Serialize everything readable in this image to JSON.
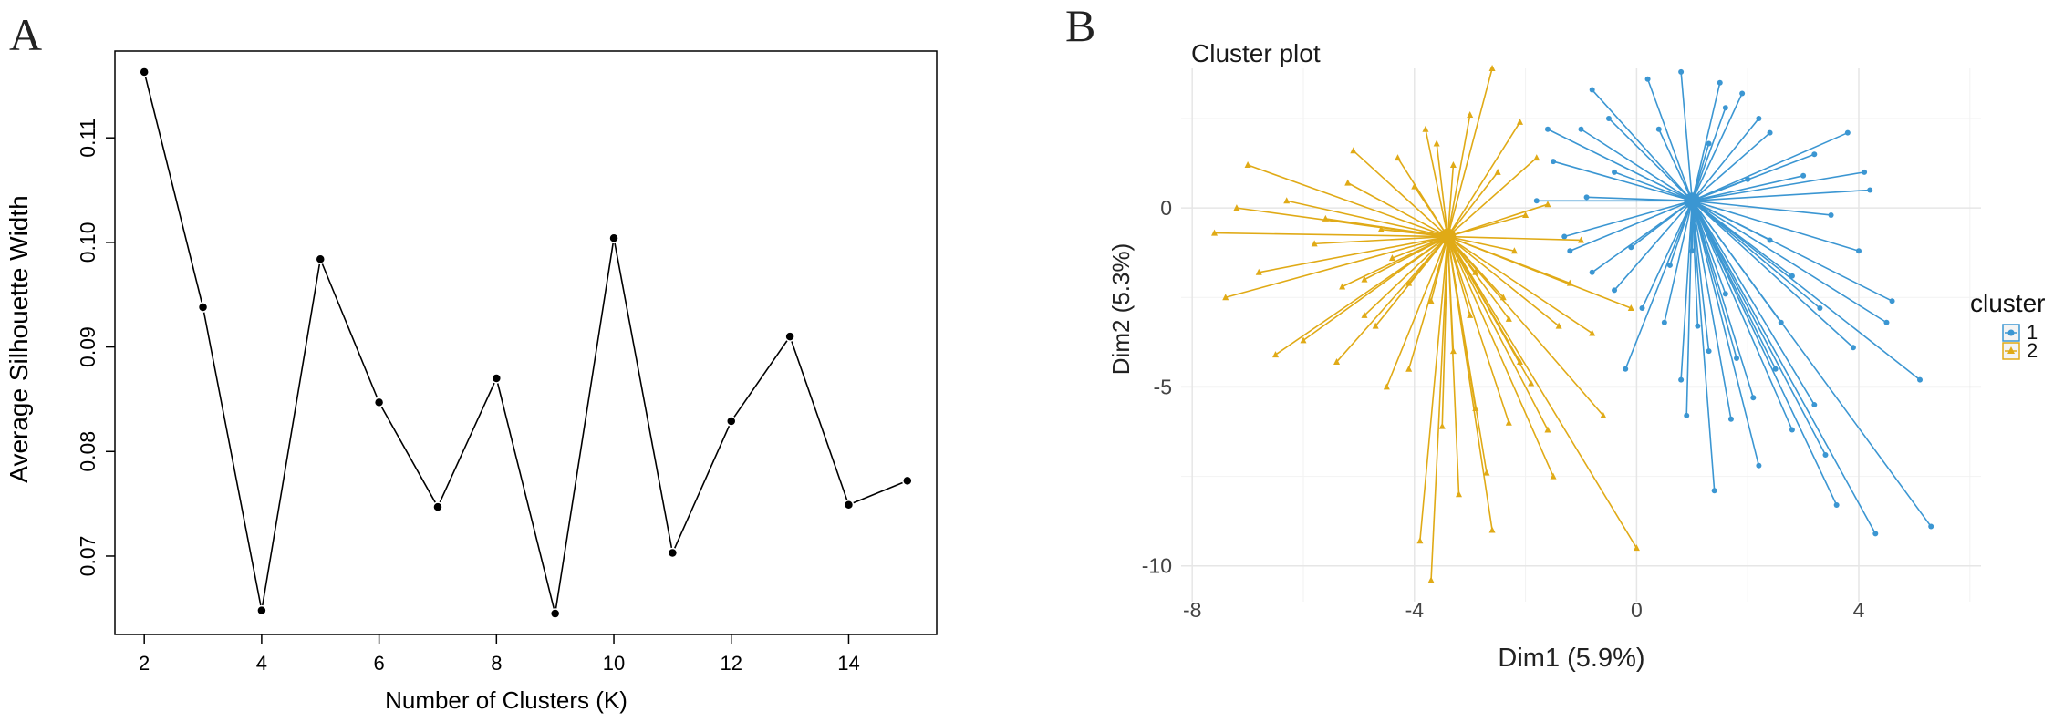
{
  "chart_data": [
    {
      "panel_label": "A",
      "type": "line",
      "xlabel": "Number of Clusters (K)",
      "ylabel": "Average Silhouette Width",
      "x": [
        2,
        3,
        4,
        5,
        6,
        7,
        8,
        9,
        10,
        11,
        12,
        13,
        14,
        15
      ],
      "values": [
        0.1163,
        0.0938,
        0.0648,
        0.0984,
        0.0847,
        0.0747,
        0.087,
        0.0645,
        0.1004,
        0.0703,
        0.0829,
        0.091,
        0.0749,
        0.0772
      ],
      "xlim": [
        1.5,
        15.5
      ],
      "ylim": [
        0.0625,
        0.1183
      ],
      "xticks": [
        2,
        4,
        6,
        8,
        10,
        12,
        14
      ],
      "yticks": [
        0.07,
        0.08,
        0.09,
        0.1,
        0.11
      ],
      "ytick_labels": [
        "0.07",
        "0.08",
        "0.09",
        "0.10",
        "0.11"
      ],
      "line_color": "#000000",
      "marker_color": "#000000",
      "grid": false
    },
    {
      "panel_label": "B",
      "type": "scatter",
      "title": "Cluster plot",
      "xlabel": "Dim1 (5.9%)",
      "ylabel": "Dim2 (5.3%)",
      "xlim": [
        -8.2,
        6.2
      ],
      "ylim": [
        -11.0,
        3.9
      ],
      "xticks": [
        -8,
        -4,
        0,
        4
      ],
      "xtick_labels": [
        "-8",
        "-4",
        "0",
        "4"
      ],
      "yticks": [
        -10,
        -5,
        0
      ],
      "ytick_labels": [
        "-10",
        "-5",
        "0"
      ],
      "grid": true,
      "legend": {
        "title": "cluster",
        "position": "right"
      },
      "series": [
        {
          "name": "1",
          "color": "#3B96D2",
          "marker": "circle",
          "centroid": [
            1.0,
            0.2
          ],
          "points": [
            [
              3.5,
              -0.2
            ],
            [
              4.2,
              0.5
            ],
            [
              3.2,
              1.5
            ],
            [
              2.2,
              2.5
            ],
            [
              1.5,
              3.5
            ],
            [
              0.8,
              3.8
            ],
            [
              -0.5,
              2.5
            ],
            [
              -1.6,
              2.2
            ],
            [
              -1.8,
              0.2
            ],
            [
              -1.2,
              -1.2
            ],
            [
              -0.4,
              -2.3
            ],
            [
              -0.2,
              -4.5
            ],
            [
              0.5,
              -3.2
            ],
            [
              0.8,
              -4.8
            ],
            [
              1.4,
              -7.9
            ],
            [
              2.1,
              -5.3
            ],
            [
              2.5,
              -4.5
            ],
            [
              3.2,
              -5.5
            ],
            [
              3.6,
              -8.3
            ],
            [
              4.3,
              -9.1
            ],
            [
              5.3,
              -8.9
            ],
            [
              5.1,
              -4.8
            ],
            [
              4.6,
              -2.6
            ],
            [
              3.9,
              -3.9
            ],
            [
              2.8,
              -1.9
            ],
            [
              3.3,
              -2.8
            ],
            [
              2.6,
              -3.2
            ],
            [
              1.7,
              -5.9
            ],
            [
              0.9,
              -5.8
            ],
            [
              1.1,
              -3.3
            ],
            [
              -0.8,
              -1.8
            ],
            [
              -1.3,
              -0.8
            ],
            [
              -1.5,
              1.3
            ],
            [
              -1.0,
              2.2
            ],
            [
              -0.8,
              3.3
            ],
            [
              0.2,
              3.6
            ],
            [
              1.9,
              3.2
            ],
            [
              2.4,
              2.1
            ],
            [
              3.8,
              2.1
            ],
            [
              4.1,
              1.0
            ],
            [
              3.0,
              0.9
            ],
            [
              4.0,
              -1.2
            ],
            [
              2.4,
              -0.9
            ],
            [
              1.6,
              -2.4
            ],
            [
              0.6,
              -1.6
            ],
            [
              -0.1,
              -1.1
            ],
            [
              -0.4,
              1.0
            ],
            [
              0.4,
              2.2
            ],
            [
              1.3,
              1.8
            ],
            [
              2.0,
              0.8
            ],
            [
              1.0,
              -1.2
            ],
            [
              3.4,
              -6.9
            ],
            [
              2.8,
              -6.2
            ],
            [
              1.3,
              -4.0
            ],
            [
              0.1,
              -2.8
            ],
            [
              2.2,
              -7.2
            ],
            [
              1.8,
              -4.2
            ],
            [
              4.5,
              -3.2
            ],
            [
              -0.9,
              0.3
            ],
            [
              1.6,
              2.8
            ]
          ]
        },
        {
          "name": "2",
          "color": "#E0AA16",
          "marker": "triangle",
          "centroid": [
            -3.4,
            -0.8
          ],
          "points": [
            [
              -6.5,
              -4.1
            ],
            [
              -7.4,
              -2.5
            ],
            [
              -7.6,
              -0.7
            ],
            [
              -7.0,
              1.2
            ],
            [
              -6.3,
              0.2
            ],
            [
              -5.8,
              -1.0
            ],
            [
              -5.3,
              -2.2
            ],
            [
              -6.0,
              -3.7
            ],
            [
              -4.7,
              -3.3
            ],
            [
              -4.5,
              -5.0
            ],
            [
              -3.9,
              -9.3
            ],
            [
              -3.7,
              -10.4
            ],
            [
              -3.2,
              -8.0
            ],
            [
              -2.6,
              -9.0
            ],
            [
              -2.3,
              -6.0
            ],
            [
              -2.7,
              -7.4
            ],
            [
              -1.6,
              -6.2
            ],
            [
              -1.5,
              -7.5
            ],
            [
              -0.6,
              -5.8
            ],
            [
              0.0,
              -9.5
            ],
            [
              -0.8,
              -3.5
            ],
            [
              -0.1,
              -2.8
            ],
            [
              -1.2,
              -2.1
            ],
            [
              -1.0,
              -0.9
            ],
            [
              -1.6,
              0.1
            ],
            [
              -1.8,
              1.4
            ],
            [
              -2.1,
              2.4
            ],
            [
              -2.6,
              3.9
            ],
            [
              -3.0,
              2.6
            ],
            [
              -3.8,
              2.2
            ],
            [
              -4.3,
              1.4
            ],
            [
              -5.1,
              1.6
            ],
            [
              -5.6,
              -0.3
            ],
            [
              -4.9,
              -2.0
            ],
            [
              -4.1,
              -4.5
            ],
            [
              -3.5,
              -6.1
            ],
            [
              -2.9,
              -5.6
            ],
            [
              -2.1,
              -4.3
            ],
            [
              -1.4,
              -3.3
            ],
            [
              -2.4,
              -2.5
            ],
            [
              -2.9,
              -1.8
            ],
            [
              -4.1,
              -2.1
            ],
            [
              -4.6,
              -0.6
            ],
            [
              -4.0,
              0.6
            ],
            [
              -3.3,
              1.2
            ],
            [
              -2.5,
              1.0
            ],
            [
              -2.0,
              -0.2
            ],
            [
              -6.8,
              -1.8
            ],
            [
              -7.2,
              0.0
            ],
            [
              -5.4,
              -4.3
            ],
            [
              -3.3,
              -4.0
            ],
            [
              -1.9,
              -4.9
            ],
            [
              -2.3,
              -3.1
            ],
            [
              -3.0,
              -3.0
            ],
            [
              -5.2,
              0.7
            ],
            [
              -3.6,
              1.8
            ],
            [
              -2.2,
              -1.2
            ],
            [
              -3.7,
              -2.6
            ],
            [
              -4.4,
              -1.4
            ],
            [
              -4.9,
              -3.0
            ]
          ]
        }
      ]
    }
  ]
}
